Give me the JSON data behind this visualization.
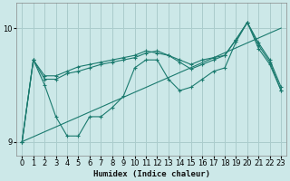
{
  "xlabel": "Humidex (Indice chaleur)",
  "background_color": "#cce8e8",
  "grid_color": "#aacccc",
  "line_color": "#1a7a6e",
  "xlim": [
    -0.5,
    23.5
  ],
  "ylim": [
    8.88,
    10.22
  ],
  "yticks": [
    9,
    10
  ],
  "xticks": [
    0,
    1,
    2,
    3,
    4,
    5,
    6,
    7,
    8,
    9,
    10,
    11,
    12,
    13,
    14,
    15,
    16,
    17,
    18,
    19,
    20,
    21,
    22,
    23
  ],
  "line_straight": [
    9.0,
    9.043,
    9.087,
    9.13,
    9.174,
    9.217,
    9.261,
    9.304,
    9.348,
    9.391,
    9.435,
    9.478,
    9.522,
    9.565,
    9.609,
    9.652,
    9.696,
    9.739,
    9.783,
    9.826,
    9.87,
    9.913,
    9.957,
    10.0
  ],
  "line_upper": [
    9.0,
    9.72,
    9.58,
    9.58,
    9.62,
    9.66,
    9.68,
    9.7,
    9.72,
    9.74,
    9.76,
    9.8,
    9.78,
    9.76,
    9.72,
    9.68,
    9.72,
    9.74,
    9.76,
    9.9,
    10.05,
    9.87,
    9.72,
    9.48
  ],
  "line_mid": [
    9.0,
    9.72,
    9.55,
    9.55,
    9.6,
    9.62,
    9.65,
    9.68,
    9.7,
    9.72,
    9.74,
    9.78,
    9.8,
    9.76,
    9.7,
    9.64,
    9.68,
    9.72,
    9.76,
    9.9,
    10.05,
    9.85,
    9.7,
    9.45
  ],
  "line_zigzag": [
    9.0,
    9.72,
    9.5,
    9.22,
    9.05,
    9.05,
    9.22,
    9.22,
    9.3,
    9.4,
    9.65,
    9.72,
    9.72,
    9.55,
    9.45,
    9.48,
    9.55,
    9.62,
    9.65,
    9.88,
    10.05,
    9.82,
    9.68,
    9.45
  ]
}
